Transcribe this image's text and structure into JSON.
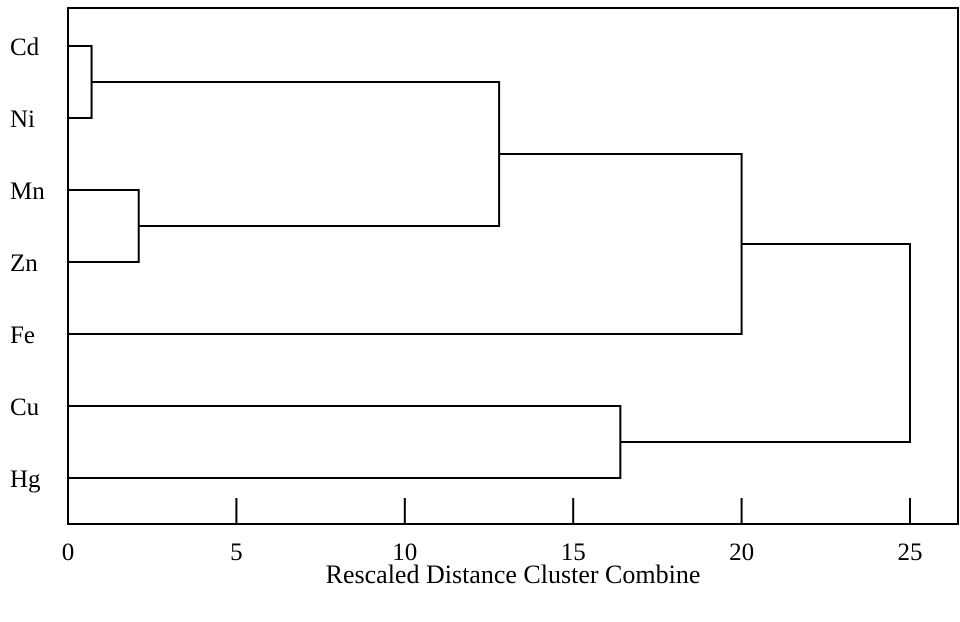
{
  "chart_data": {
    "type": "dendrogram",
    "xlabel": "Rescaled Distance Cluster Combine",
    "xlim": [
      0,
      25
    ],
    "xticks": [
      0,
      5,
      10,
      15,
      20,
      25
    ],
    "leaves": [
      "Cd",
      "Ni",
      "Mn",
      "Zn",
      "Fe",
      "Cu",
      "Hg"
    ],
    "merges": [
      {
        "id": "c1",
        "left": "Cd",
        "right": "Ni",
        "distance": 0.7
      },
      {
        "id": "c2",
        "left": "Mn",
        "right": "Zn",
        "distance": 2.1
      },
      {
        "id": "c3",
        "left": "c1",
        "right": "c2",
        "distance": 12.8
      },
      {
        "id": "c4",
        "left": "c3",
        "right": "Fe",
        "distance": 20.0
      },
      {
        "id": "c5",
        "left": "Cu",
        "right": "Hg",
        "distance": 16.4
      },
      {
        "id": "c6",
        "left": "c4",
        "right": "c5",
        "distance": 25.0
      }
    ],
    "grid": false,
    "legend": "none"
  }
}
